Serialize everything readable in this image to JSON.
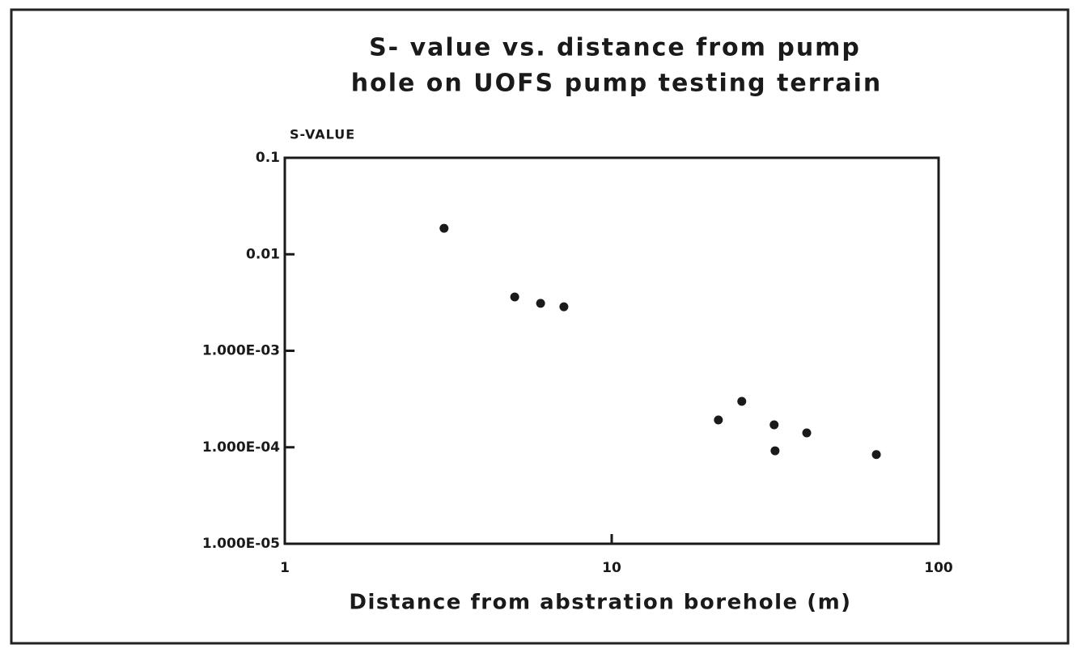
{
  "chart_data": {
    "type": "scatter",
    "title": [
      "S- value vs. distance from pump",
      "hole on UOFS pump testing terrain"
    ],
    "y_label": "S-VALUE",
    "x_label": "Distance from abstration borehole (m)",
    "x_log": true,
    "y_log": true,
    "color": "#1a1a1a",
    "xlim": [
      1,
      100
    ],
    "xticks": [
      1,
      10,
      100
    ],
    "ylim": [
      1e-05,
      0.1
    ],
    "yticks": [
      {
        "value": 1e-05,
        "label": "1.000E-05"
      },
      {
        "value": 0.0001,
        "label": "1.000E-04"
      },
      {
        "value": 0.001,
        "label": "1.000E-03"
      },
      0.01,
      0.1
    ],
    "series": [
      {
        "name": "S-value",
        "x": [
          3.07,
          5.05,
          6.06,
          7.14,
          21.2,
          25.0,
          31.4,
          31.6,
          39.5,
          64.5
        ],
        "values": [
          0.0186,
          0.00361,
          0.0031,
          0.00286,
          0.000192,
          0.000299,
          0.000171,
          9.2e-05,
          0.000141,
          8.4e-05
        ]
      }
    ]
  }
}
